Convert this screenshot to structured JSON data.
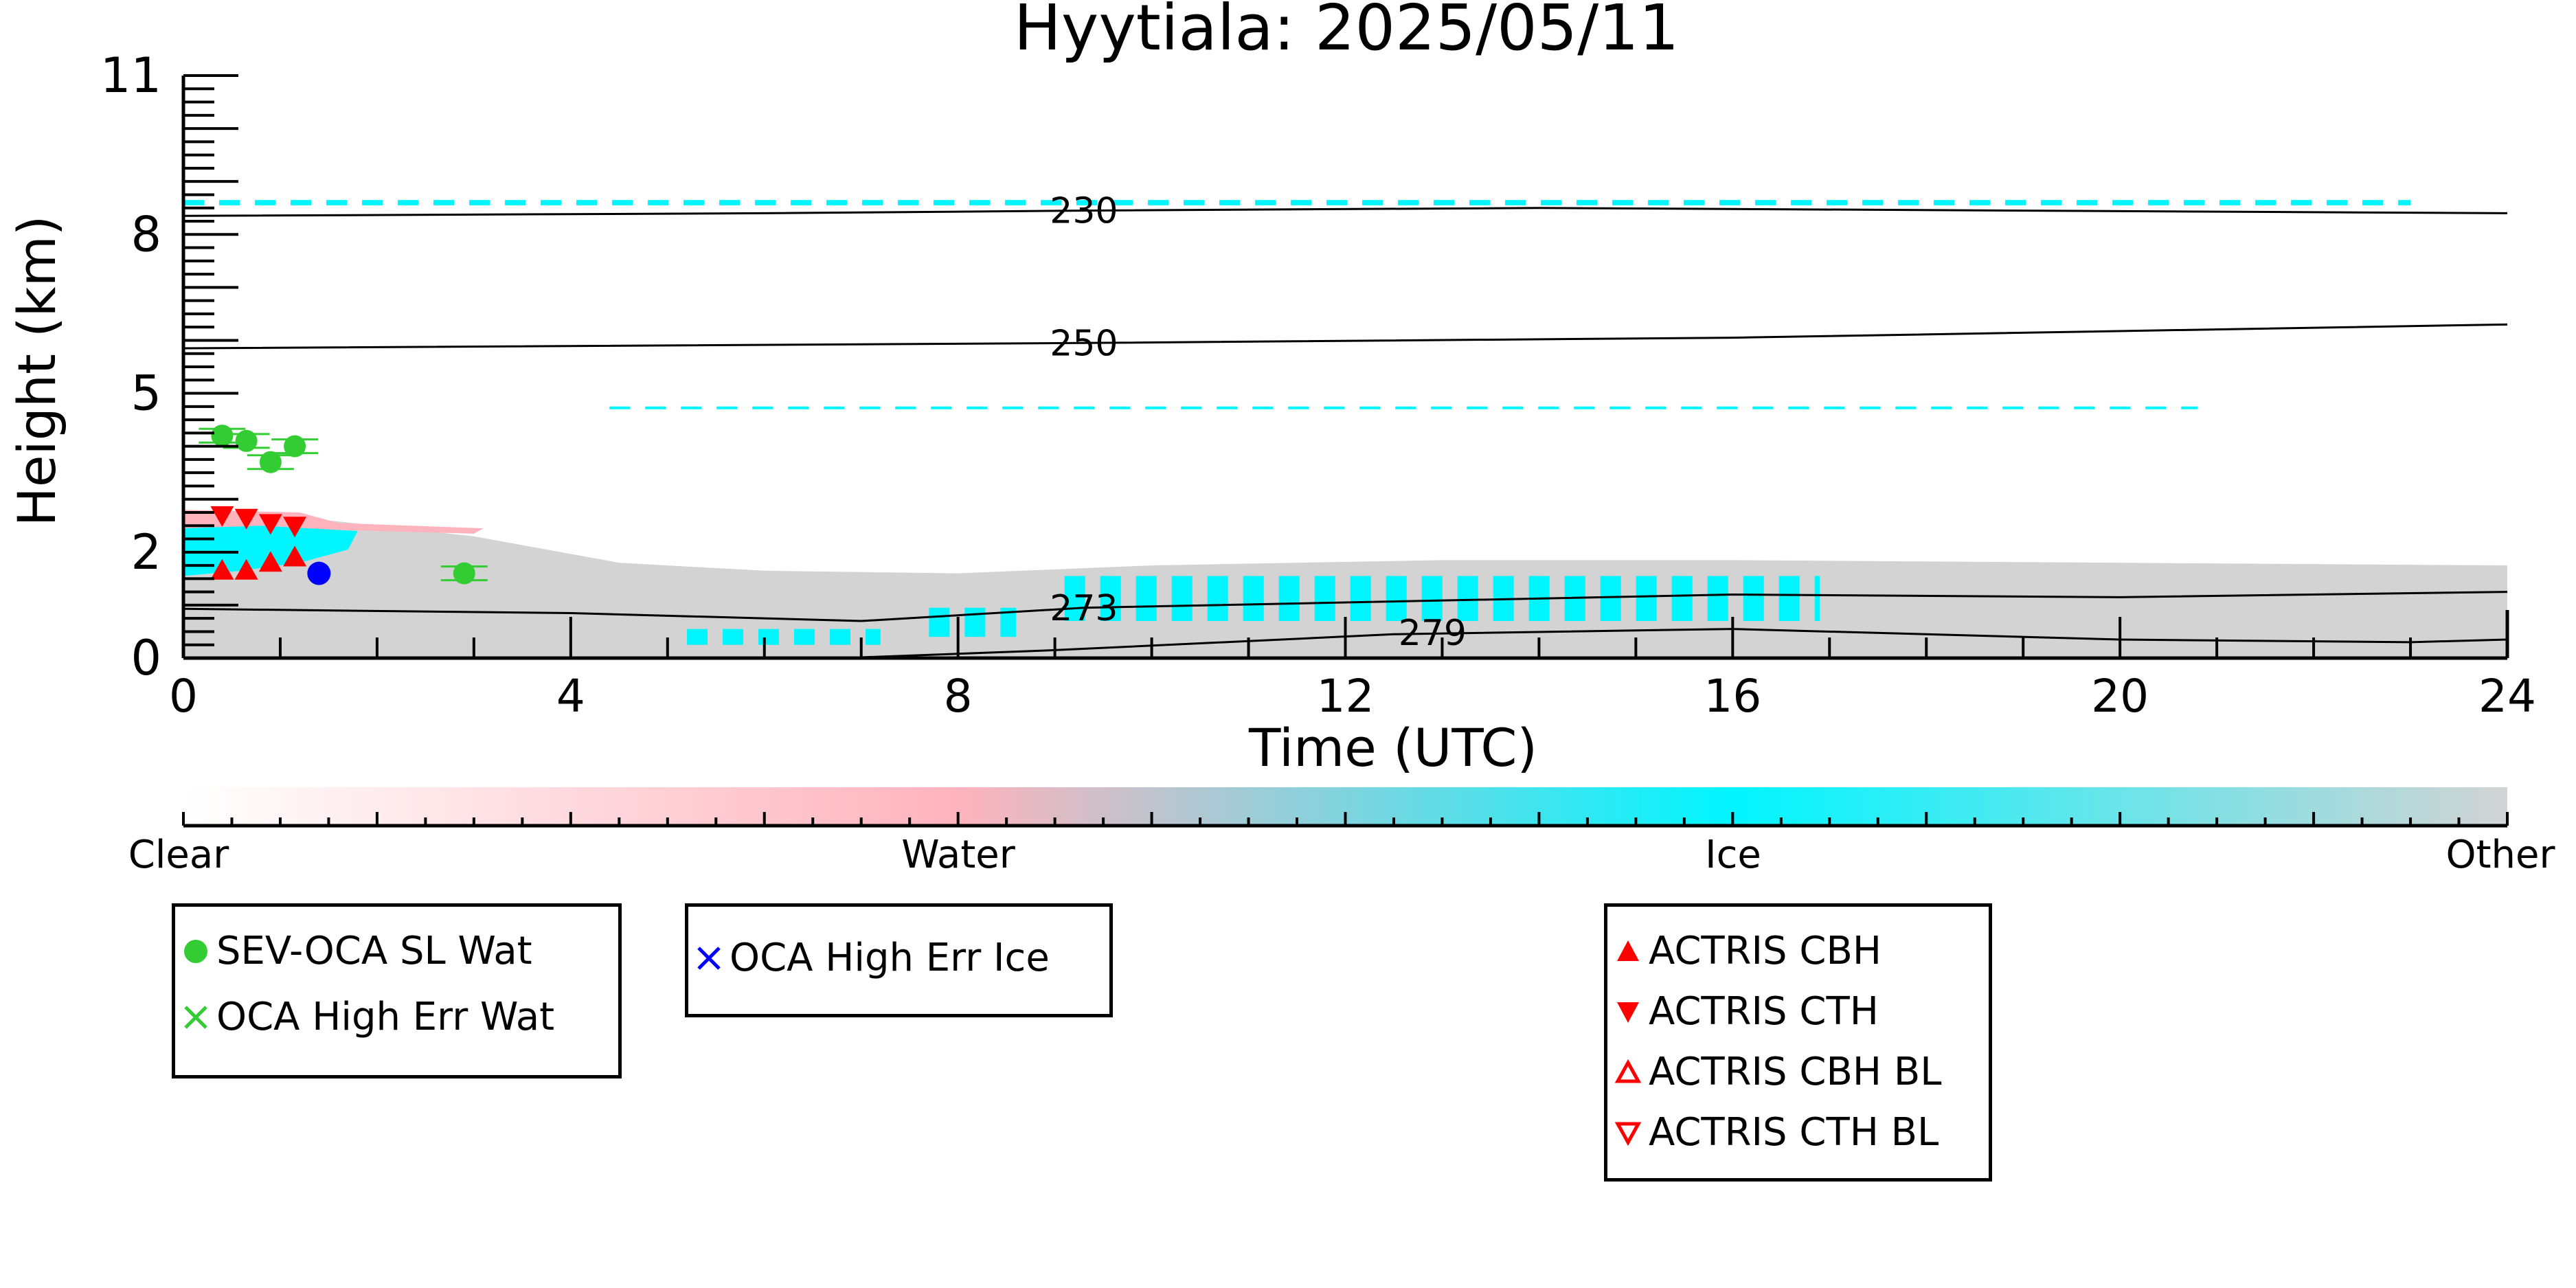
{
  "chart_data": {
    "type": "heatmap",
    "title": "Hyytiala: 2025/05/11",
    "xlabel": "Time (UTC)",
    "ylabel": "Height (km)",
    "xlim": [
      0,
      24
    ],
    "ylim": [
      0,
      11
    ],
    "x_ticks": [
      0,
      4,
      8,
      12,
      16,
      20,
      24
    ],
    "y_ticks": [
      {
        "value": 0,
        "label": "0"
      },
      {
        "value": 2,
        "label": "2"
      },
      {
        "value": 5,
        "label": "5"
      },
      {
        "value": 8,
        "label": "8"
      },
      {
        "value": 11,
        "label": "11"
      }
    ],
    "colorbar": {
      "labels": [
        "Clear",
        "Water",
        "Ice",
        "Other"
      ],
      "colors": [
        "#ffffff",
        "#ffb3bd",
        "#00f5ff",
        "#d3d3d3"
      ]
    },
    "contours": [
      {
        "label": "230",
        "points": [
          [
            0,
            8.35
          ],
          [
            6,
            8.4
          ],
          [
            9.3,
            8.45
          ],
          [
            14,
            8.5
          ],
          [
            24,
            8.4
          ]
        ],
        "label_at": [
          9.3,
          8.45
        ]
      },
      {
        "label": "250",
        "points": [
          [
            0,
            5.85
          ],
          [
            9.3,
            5.95
          ],
          [
            16,
            6.05
          ],
          [
            24,
            6.3
          ]
        ],
        "label_at": [
          9.3,
          5.95
        ]
      },
      {
        "label": "273",
        "points": [
          [
            0,
            0.93
          ],
          [
            4,
            0.85
          ],
          [
            7,
            0.7
          ],
          [
            9.3,
            0.95
          ],
          [
            12,
            1.05
          ],
          [
            16,
            1.2
          ],
          [
            20,
            1.15
          ],
          [
            24,
            1.25
          ]
        ],
        "label_at": [
          9.3,
          0.95
        ]
      },
      {
        "label": "279",
        "points": [
          [
            6.8,
            0.0
          ],
          [
            9,
            0.15
          ],
          [
            12.5,
            0.45
          ],
          [
            16,
            0.55
          ],
          [
            20,
            0.35
          ],
          [
            23,
            0.3
          ],
          [
            24,
            0.35
          ]
        ],
        "label_at": [
          12.9,
          0.48
        ]
      }
    ],
    "series": [
      {
        "name": "SEV-OCA SL Wat",
        "marker": "circle",
        "color": "#33cc33",
        "points": [
          [
            0.4,
            4.2
          ],
          [
            0.65,
            4.1
          ],
          [
            0.9,
            3.7
          ],
          [
            1.15,
            4.0
          ],
          [
            2.9,
            1.6
          ]
        ]
      },
      {
        "name": "OCA High Err Wat",
        "marker": "x",
        "color": "#33cc33",
        "points": []
      },
      {
        "name": "OCA High Err Ice",
        "marker": "x",
        "color": "#0000ff",
        "points": [
          [
            1.4,
            1.6
          ]
        ]
      },
      {
        "name": "ACTRIS CBH",
        "marker": "triangle-up",
        "color": "#ff0000",
        "points": [
          [
            0.4,
            1.65
          ],
          [
            0.65,
            1.65
          ],
          [
            0.9,
            1.8
          ],
          [
            1.15,
            1.9
          ]
        ]
      },
      {
        "name": "ACTRIS CTH",
        "marker": "triangle-down",
        "color": "#ff0000",
        "points": [
          [
            0.4,
            2.7
          ],
          [
            0.65,
            2.65
          ],
          [
            0.9,
            2.55
          ],
          [
            1.15,
            2.5
          ]
        ]
      },
      {
        "name": "ACTRIS CBH BL",
        "marker": "triangle-up-open",
        "color": "#ff0000",
        "points": []
      },
      {
        "name": "ACTRIS CTH BL",
        "marker": "triangle-down-open",
        "color": "#ff0000",
        "points": []
      }
    ],
    "classification_regions": [
      {
        "class": "Other",
        "color": "#d3d3d3",
        "polygon": [
          [
            0,
            0
          ],
          [
            0,
            2.7
          ],
          [
            1.5,
            2.6
          ],
          [
            3,
            2.3
          ],
          [
            4.5,
            1.8
          ],
          [
            6,
            1.65
          ],
          [
            8,
            1.6
          ],
          [
            10,
            1.75
          ],
          [
            13,
            1.85
          ],
          [
            16,
            1.85
          ],
          [
            20,
            1.8
          ],
          [
            24,
            1.75
          ],
          [
            24,
            0
          ]
        ]
      },
      {
        "class": "Water",
        "color": "#ffb3bd",
        "polygon": [
          [
            0,
            2.15
          ],
          [
            0,
            2.8
          ],
          [
            1.2,
            2.75
          ],
          [
            1.6,
            2.55
          ],
          [
            3.1,
            2.45
          ],
          [
            3.0,
            2.35
          ],
          [
            1.0,
            2.45
          ]
        ]
      },
      {
        "class": "Ice",
        "color": "#00f5ff",
        "polygon": [
          [
            0,
            1.55
          ],
          [
            0,
            2.45
          ],
          [
            0.8,
            2.5
          ],
          [
            1.8,
            2.4
          ],
          [
            1.7,
            2.05
          ],
          [
            1.2,
            1.8
          ],
          [
            0.6,
            1.65
          ]
        ]
      }
    ],
    "classification_bands": [
      {
        "class": "Ice",
        "color": "#00f5ff",
        "x0": 0,
        "x1": 23,
        "y0": 8.55,
        "y1": 8.65,
        "dashed": true
      },
      {
        "class": "Ice",
        "color": "#00f5ff",
        "x0": 4.4,
        "x1": 20.8,
        "y0": 4.7,
        "y1": 4.75,
        "dashed": true
      },
      {
        "class": "Ice",
        "color": "#00f5ff",
        "x0": 5.2,
        "x1": 7.2,
        "y0": 0.25,
        "y1": 0.55,
        "dashed": true
      },
      {
        "class": "Ice",
        "color": "#00f5ff",
        "x0": 7.7,
        "x1": 8.6,
        "y0": 0.4,
        "y1": 0.95,
        "dashed": true
      },
      {
        "class": "Ice",
        "color": "#00f5ff",
        "x0": 9.1,
        "x1": 16.9,
        "y0": 0.7,
        "y1": 1.55,
        "dashed": true
      }
    ]
  },
  "legends": [
    {
      "items": [
        {
          "label": "SEV-OCA SL Wat",
          "symbol": "circle",
          "color": "#33cc33"
        },
        {
          "label": "OCA High Err Wat",
          "symbol": "x",
          "color": "#33cc33"
        }
      ]
    },
    {
      "items": [
        {
          "label": "OCA High Err Ice",
          "symbol": "x",
          "color": "#0000ff"
        }
      ]
    },
    {
      "items": [
        {
          "label": "ACTRIS CBH",
          "symbol": "triangle-up",
          "color": "#ff0000"
        },
        {
          "label": "ACTRIS CTH",
          "symbol": "triangle-down",
          "color": "#ff0000"
        },
        {
          "label": "ACTRIS CBH BL",
          "symbol": "triangle-up-open",
          "color": "#ff0000"
        },
        {
          "label": "ACTRIS CTH BL",
          "symbol": "triangle-down-open",
          "color": "#ff0000"
        }
      ]
    }
  ]
}
